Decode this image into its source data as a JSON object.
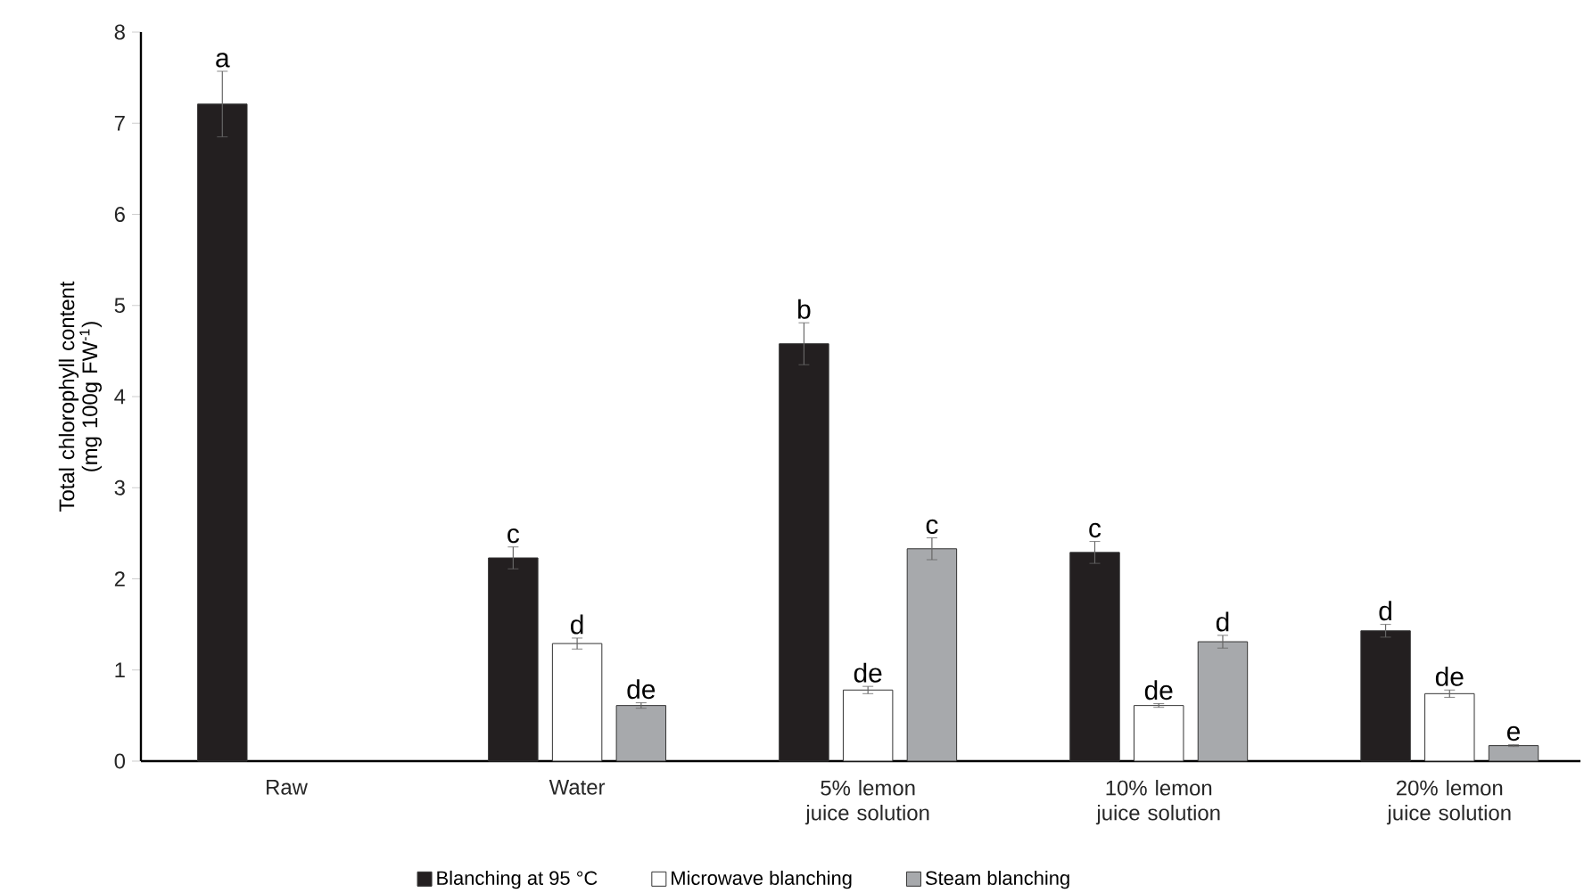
{
  "chart_data": {
    "type": "bar",
    "ylabel": "Total chlorophyll content (mg 100g FW$^{-1}$)",
    "categories": [
      "Raw",
      "Water",
      "5%  lemon juice solution",
      "10% lemon juice solution",
      "20% lemon juice solution"
    ],
    "series": [
      {
        "name": "Blanching at 95 °C",
        "color": "#231f20",
        "values": [
          7.21,
          2.23,
          4.58,
          2.29,
          1.43
        ],
        "errors": [
          0.36,
          0.12,
          0.23,
          0.12,
          0.07
        ],
        "value_labels": [
          "a",
          "c",
          "b",
          "c",
          "d"
        ]
      },
      {
        "name": "Microwave blanching",
        "color": "#ffffff",
        "values": [
          null,
          1.29,
          0.78,
          0.61,
          0.74
        ],
        "errors": [
          null,
          0.06,
          0.04,
          0.02,
          0.04
        ],
        "value_labels": [
          null,
          "d",
          "de",
          "de",
          "de"
        ]
      },
      {
        "name": "Steam blanching",
        "color": "#a7a9ac",
        "values": [
          null,
          0.61,
          2.33,
          1.31,
          0.17
        ],
        "errors": [
          null,
          0.03,
          0.12,
          0.07,
          0.01
        ],
        "value_labels": [
          null,
          "de",
          "c",
          "d",
          "e"
        ]
      }
    ],
    "ylim": [
      0,
      8
    ],
    "yticks": [
      0,
      1,
      2,
      3,
      4,
      5,
      6,
      7,
      8
    ],
    "grid": false,
    "legend": "bottom"
  }
}
